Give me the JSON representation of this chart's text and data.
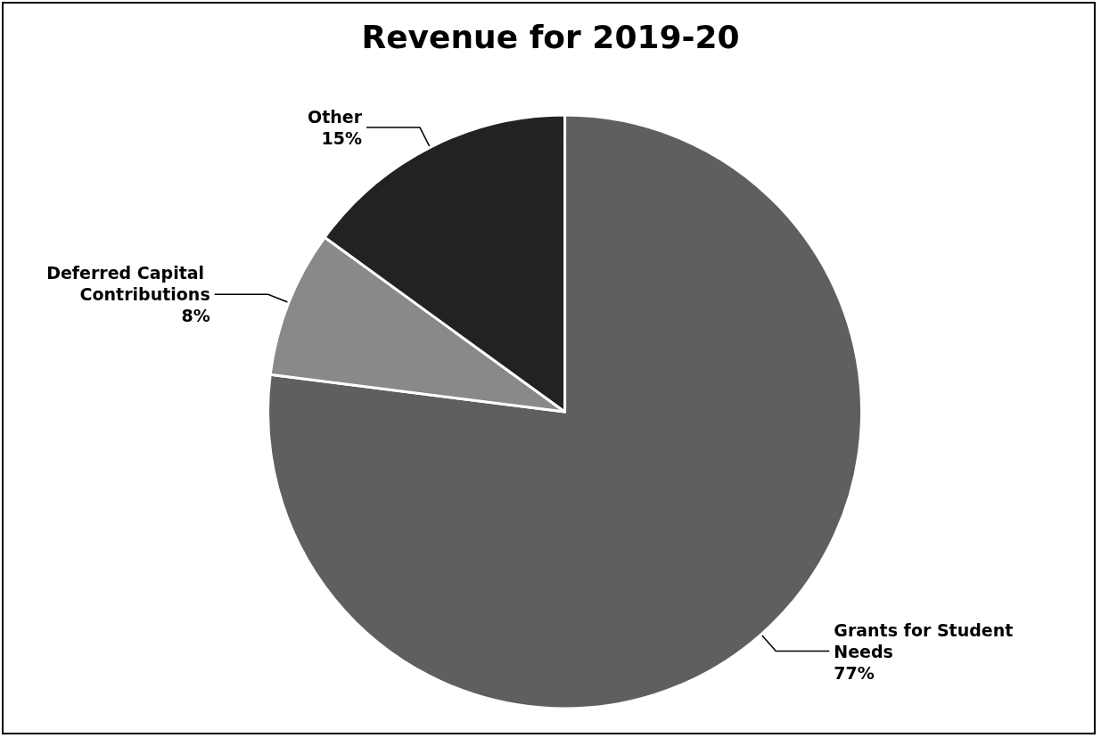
{
  "chart_data": {
    "type": "pie",
    "title": "Revenue for 2019-20",
    "categories": [
      "Grants for Student Needs",
      "Deferred Capital Contributions",
      "Other"
    ],
    "values": [
      77,
      8,
      15
    ],
    "colors": [
      "#5f5f5f",
      "#898989",
      "#222222"
    ],
    "value_labels": [
      "77%",
      "8%",
      "15%"
    ],
    "legend": false
  }
}
